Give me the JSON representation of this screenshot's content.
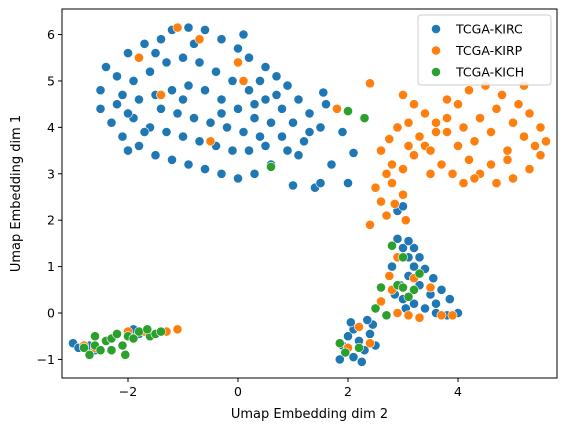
{
  "chart_data": {
    "type": "scatter",
    "title": "",
    "xlabel": "Umap Embedding dim 2",
    "ylabel": "Umap Embedding dim 1",
    "xlim": [
      -3.2,
      5.8
    ],
    "ylim": [
      -1.4,
      6.55
    ],
    "xticks": [
      -2,
      0,
      2,
      4
    ],
    "yticks": [
      -1,
      0,
      1,
      2,
      3,
      4,
      5,
      6
    ],
    "grid": false,
    "legend_position": "top-right",
    "series": [
      {
        "name": "TCGA-KIRC",
        "color": "#1f77b4",
        "points": [
          [
            -2.4,
            5.3
          ],
          [
            -2.2,
            5.1
          ],
          [
            -2.0,
            5.6
          ],
          [
            -1.7,
            5.8
          ],
          [
            -1.4,
            5.9
          ],
          [
            -1.2,
            6.1
          ],
          [
            -0.9,
            6.15
          ],
          [
            -0.6,
            6.1
          ],
          [
            -0.3,
            5.9
          ],
          [
            0.0,
            5.7
          ],
          [
            0.2,
            5.5
          ],
          [
            0.5,
            5.3
          ],
          [
            0.7,
            5.1
          ],
          [
            0.9,
            4.9
          ],
          [
            1.1,
            4.6
          ],
          [
            1.3,
            4.3
          ],
          [
            1.5,
            4.0
          ],
          [
            1.2,
            3.7
          ],
          [
            0.9,
            3.5
          ],
          [
            0.6,
            3.2
          ],
          [
            0.3,
            3.0
          ],
          [
            0.0,
            2.9
          ],
          [
            -0.3,
            3.0
          ],
          [
            -0.6,
            3.1
          ],
          [
            -0.9,
            3.2
          ],
          [
            -1.2,
            3.3
          ],
          [
            -1.5,
            3.4
          ],
          [
            -1.8,
            3.6
          ],
          [
            -2.1,
            3.8
          ],
          [
            -2.3,
            4.1
          ],
          [
            -2.5,
            4.4
          ],
          [
            -2.5,
            4.8
          ],
          [
            -2.2,
            4.5
          ],
          [
            -1.9,
            4.2
          ],
          [
            -1.6,
            4.0
          ],
          [
            -1.3,
            3.9
          ],
          [
            -1.0,
            3.8
          ],
          [
            -0.7,
            3.7
          ],
          [
            -0.4,
            3.6
          ],
          [
            -0.1,
            3.5
          ],
          [
            0.2,
            3.5
          ],
          [
            0.5,
            3.6
          ],
          [
            0.8,
            3.8
          ],
          [
            1.0,
            4.1
          ],
          [
            0.8,
            4.4
          ],
          [
            0.5,
            4.6
          ],
          [
            0.2,
            4.8
          ],
          [
            -0.1,
            5.0
          ],
          [
            -0.4,
            5.2
          ],
          [
            -0.7,
            5.4
          ],
          [
            -1.0,
            5.5
          ],
          [
            -1.3,
            5.4
          ],
          [
            -1.6,
            5.2
          ],
          [
            -1.9,
            5.0
          ],
          [
            -2.1,
            4.7
          ],
          [
            -1.8,
            4.6
          ],
          [
            -1.5,
            4.7
          ],
          [
            -1.2,
            4.8
          ],
          [
            -0.9,
            4.9
          ],
          [
            -0.6,
            4.8
          ],
          [
            -0.3,
            4.6
          ],
          [
            0.0,
            4.4
          ],
          [
            0.3,
            4.2
          ],
          [
            0.6,
            4.1
          ],
          [
            -1.4,
            4.4
          ],
          [
            -1.1,
            4.3
          ],
          [
            -0.8,
            4.2
          ],
          [
            -0.5,
            4.1
          ],
          [
            -0.2,
            4.0
          ],
          [
            0.1,
            3.9
          ],
          [
            0.4,
            3.8
          ],
          [
            -1.7,
            3.9
          ],
          [
            -2.0,
            4.3
          ],
          [
            -1.5,
            5.6
          ],
          [
            -0.8,
            5.8
          ],
          [
            0.1,
            6.0
          ],
          [
            0.4,
            5.0
          ],
          [
            0.7,
            4.7
          ],
          [
            1.3,
            3.9
          ],
          [
            1.6,
            4.5
          ],
          [
            1.8,
            4.4
          ],
          [
            1.9,
            3.9
          ],
          [
            1.1,
            3.4
          ],
          [
            1.0,
            2.75
          ],
          [
            1.4,
            2.7
          ],
          [
            1.5,
            2.8
          ],
          [
            1.7,
            3.2
          ],
          [
            2.0,
            2.8
          ],
          [
            2.1,
            3.45
          ],
          [
            1.55,
            4.75
          ],
          [
            -2.0,
            3.5
          ],
          [
            -1.0,
            4.6
          ],
          [
            -0.3,
            4.3
          ],
          [
            0.3,
            4.5
          ],
          [
            2.9,
            2.2
          ],
          [
            3.0,
            2.3
          ],
          [
            2.9,
            1.6
          ],
          [
            3.0,
            1.4
          ],
          [
            3.1,
            1.2
          ],
          [
            3.2,
            1.0
          ],
          [
            3.1,
            0.8
          ],
          [
            2.95,
            0.6
          ],
          [
            2.85,
            0.4
          ],
          [
            3.0,
            0.3
          ],
          [
            3.2,
            0.2
          ],
          [
            3.4,
            0.1
          ],
          [
            3.6,
            0.0
          ],
          [
            3.8,
            -0.05
          ],
          [
            4.0,
            0.0
          ],
          [
            3.85,
            0.3
          ],
          [
            3.7,
            0.5
          ],
          [
            3.55,
            0.75
          ],
          [
            3.4,
            0.95
          ],
          [
            3.3,
            1.2
          ],
          [
            3.2,
            1.4
          ],
          [
            3.1,
            1.55
          ],
          [
            3.3,
            0.6
          ],
          [
            3.5,
            0.4
          ],
          [
            3.05,
            0.1
          ],
          [
            2.8,
            1.0
          ],
          [
            3.6,
            0.2
          ],
          [
            1.9,
            -0.7
          ],
          [
            2.0,
            -0.5
          ],
          [
            2.1,
            -0.35
          ],
          [
            2.2,
            -0.6
          ],
          [
            2.3,
            -0.8
          ],
          [
            2.4,
            -0.45
          ],
          [
            2.45,
            -0.25
          ],
          [
            2.1,
            -0.95
          ],
          [
            1.85,
            -1.0
          ],
          [
            2.25,
            -1.05
          ],
          [
            2.35,
            -0.15
          ],
          [
            2.05,
            -0.2
          ],
          [
            2.5,
            -0.7
          ],
          [
            -3.0,
            -0.65
          ],
          [
            -2.9,
            -0.75
          ],
          [
            -2.6,
            -0.8
          ],
          [
            -2.3,
            -0.55
          ],
          [
            -1.9,
            -0.35
          ],
          [
            -1.8,
            -0.45
          ],
          [
            -2.7,
            -0.7
          ]
        ]
      },
      {
        "name": "TCGA-KIRP",
        "color": "#ff7f0e",
        "points": [
          [
            -1.8,
            5.5
          ],
          [
            -1.1,
            6.15
          ],
          [
            -0.7,
            5.9
          ],
          [
            -1.4,
            4.7
          ],
          [
            -0.5,
            3.7
          ],
          [
            0.0,
            5.4
          ],
          [
            0.1,
            5.0
          ],
          [
            1.8,
            4.4
          ],
          [
            2.4,
            4.95
          ],
          [
            2.6,
            3.5
          ],
          [
            2.7,
            3.0
          ],
          [
            2.8,
            3.2
          ],
          [
            2.5,
            2.7
          ],
          [
            2.6,
            2.4
          ],
          [
            2.8,
            2.8
          ],
          [
            3.0,
            3.1
          ],
          [
            3.2,
            3.4
          ],
          [
            3.4,
            3.6
          ],
          [
            3.6,
            3.9
          ],
          [
            3.8,
            4.2
          ],
          [
            4.0,
            4.5
          ],
          [
            4.2,
            4.8
          ],
          [
            4.5,
            4.9
          ],
          [
            4.8,
            4.7
          ],
          [
            5.1,
            4.5
          ],
          [
            5.3,
            4.3
          ],
          [
            5.5,
            4.0
          ],
          [
            5.6,
            3.7
          ],
          [
            5.5,
            3.4
          ],
          [
            5.3,
            3.1
          ],
          [
            5.0,
            2.9
          ],
          [
            4.7,
            2.8
          ],
          [
            4.4,
            3.0
          ],
          [
            4.2,
            3.3
          ],
          [
            4.0,
            3.6
          ],
          [
            3.8,
            3.9
          ],
          [
            3.6,
            4.1
          ],
          [
            3.4,
            4.3
          ],
          [
            3.2,
            4.5
          ],
          [
            3.0,
            4.7
          ],
          [
            3.1,
            4.1
          ],
          [
            3.3,
            3.8
          ],
          [
            3.5,
            3.5
          ],
          [
            3.7,
            3.2
          ],
          [
            3.9,
            3.0
          ],
          [
            4.1,
            2.8
          ],
          [
            4.3,
            2.9
          ],
          [
            4.6,
            3.2
          ],
          [
            4.9,
            3.5
          ],
          [
            5.2,
            3.8
          ],
          [
            5.4,
            3.6
          ],
          [
            4.4,
            4.2
          ],
          [
            4.7,
            4.4
          ],
          [
            5.0,
            4.1
          ],
          [
            4.3,
            3.7
          ],
          [
            4.6,
            3.9
          ],
          [
            4.9,
            3.3
          ],
          [
            2.75,
            3.75
          ],
          [
            2.9,
            4.0
          ],
          [
            3.1,
            3.6
          ],
          [
            3.5,
            3.0
          ],
          [
            3.0,
            2.55
          ],
          [
            2.85,
            2.35
          ],
          [
            3.05,
            2.0
          ],
          [
            2.7,
            2.1
          ],
          [
            2.4,
            1.9
          ],
          [
            3.8,
            4.6
          ],
          [
            4.1,
            4.0
          ],
          [
            5.2,
            4.9
          ],
          [
            2.9,
            1.2
          ],
          [
            2.75,
            0.8
          ],
          [
            2.6,
            0.25
          ],
          [
            2.9,
            0.0
          ],
          [
            3.1,
            -0.05
          ],
          [
            3.3,
            -0.1
          ],
          [
            3.7,
            -0.05
          ],
          [
            3.9,
            -0.05
          ],
          [
            3.2,
            0.75
          ],
          [
            3.5,
            0.55
          ],
          [
            2.8,
            0.5
          ],
          [
            2.0,
            -0.75
          ],
          [
            2.4,
            -0.65
          ],
          [
            2.2,
            -0.3
          ],
          [
            -2.8,
            -0.7
          ],
          [
            -2.6,
            -0.75
          ],
          [
            -2.0,
            -0.4
          ],
          [
            -1.7,
            -0.4
          ],
          [
            -1.3,
            -0.4
          ],
          [
            -1.1,
            -0.35
          ]
        ]
      },
      {
        "name": "TCGA-KICH",
        "color": "#2ca02c",
        "points": [
          [
            0.6,
            3.15
          ],
          [
            2.0,
            4.35
          ],
          [
            2.3,
            4.2
          ],
          [
            2.9,
            0.6
          ],
          [
            3.0,
            0.55
          ],
          [
            3.2,
            0.5
          ],
          [
            3.1,
            0.35
          ],
          [
            2.7,
            -0.05
          ],
          [
            2.5,
            0.1
          ],
          [
            2.6,
            0.55
          ],
          [
            3.3,
            0.85
          ],
          [
            2.8,
            1.45
          ],
          [
            3.0,
            1.2
          ],
          [
            1.85,
            -0.65
          ],
          [
            1.95,
            -0.85
          ],
          [
            2.2,
            -0.75
          ],
          [
            -2.8,
            -0.75
          ],
          [
            -2.6,
            -0.7
          ],
          [
            -2.5,
            -0.8
          ],
          [
            -2.4,
            -0.6
          ],
          [
            -2.3,
            -0.55
          ],
          [
            -2.2,
            -0.45
          ],
          [
            -2.1,
            -0.7
          ],
          [
            -2.0,
            -0.5
          ],
          [
            -1.9,
            -0.55
          ],
          [
            -1.8,
            -0.4
          ],
          [
            -1.6,
            -0.5
          ],
          [
            -1.5,
            -0.45
          ],
          [
            -1.4,
            -0.4
          ],
          [
            -2.6,
            -0.5
          ],
          [
            -2.3,
            -0.8
          ],
          [
            -2.05,
            -0.9
          ],
          [
            -2.7,
            -0.9
          ],
          [
            -1.65,
            -0.35
          ]
        ]
      }
    ]
  }
}
